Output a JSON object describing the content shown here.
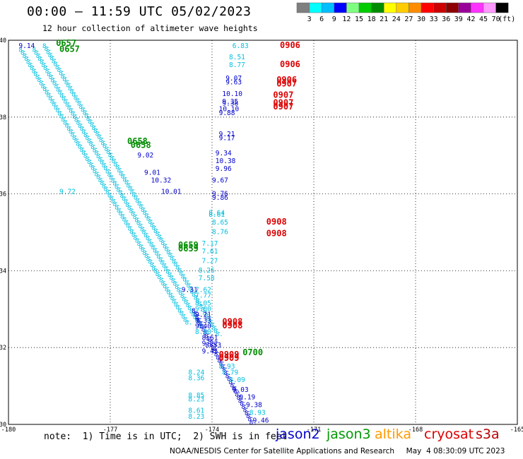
{
  "header": {
    "title": "00:00 – 11:59 UTC 05/02/2023",
    "subtitle": "12 hour collection of altimeter wave heights"
  },
  "colorbar": {
    "colors": [
      "#7f7f7f",
      "#00ffff",
      "#00bfff",
      "#0000ff",
      "#7fff7f",
      "#00cc00",
      "#008c00",
      "#ffff00",
      "#ffcc00",
      "#ff8c00",
      "#ff0000",
      "#cc0000",
      "#8c0000",
      "#990099",
      "#ff33ff",
      "#ff99ff",
      "#000000"
    ],
    "labels": [
      "3",
      "6",
      "9",
      "12",
      "15",
      "18",
      "21",
      "24",
      "27",
      "30",
      "33",
      "36",
      "39",
      "42",
      "45",
      "70"
    ],
    "unit": "(ft)"
  },
  "note": "note:  1) Time is in UTC;  2) SWH is in feet",
  "satellites": [
    {
      "name": "jason2",
      "color": "#0000cc"
    },
    {
      "name": "jason3",
      "color": "#009900"
    },
    {
      "name": "altika",
      "color": "#ff9900"
    },
    {
      "name": "cryosat",
      "color": "#dd0000"
    },
    {
      "name": "s3a",
      "color": "#bb0000"
    }
  ],
  "credit": "NOAA/NESDIS Center for Satellite Applications and Research     May  4 08:30:09 UTC 2023",
  "chart_data": {
    "type": "scatter",
    "xlim": [
      -180,
      -165
    ],
    "ylim": [
      30,
      40
    ],
    "x_ticks": [
      -180,
      -177,
      -174,
      -171,
      -168,
      -165
    ],
    "y_ticks": [
      30,
      32,
      34,
      36,
      38,
      40
    ],
    "grid": true,
    "colors": {
      "cyan": "#00bfe0",
      "blue": "#0000cc",
      "green": "#008c00",
      "red": "#dd0000"
    },
    "swh_labels": [
      {
        "x": -179.7,
        "y": 39.8,
        "v": "9.14",
        "c": "blue"
      },
      {
        "x": -178.5,
        "y": 36.0,
        "v": "9.72",
        "c": "cyan"
      },
      {
        "x": -176.2,
        "y": 36.95,
        "v": "9.02",
        "c": "blue"
      },
      {
        "x": -176.0,
        "y": 36.5,
        "v": "9.01",
        "c": "blue"
      },
      {
        "x": -175.8,
        "y": 36.3,
        "v": "10.32",
        "c": "blue"
      },
      {
        "x": -175.5,
        "y": 36.0,
        "v": "10.01",
        "c": "blue"
      },
      {
        "x": -174.9,
        "y": 33.45,
        "v": "9.31",
        "c": "blue"
      },
      {
        "x": -174.3,
        "y": 32.05,
        "v": "9.22",
        "c": "blue"
      },
      {
        "x": -174.3,
        "y": 31.85,
        "v": "9.45",
        "c": "blue"
      },
      {
        "x": -174.7,
        "y": 31.3,
        "v": "8.24",
        "c": "cyan"
      },
      {
        "x": -174.7,
        "y": 31.15,
        "v": "8.36",
        "c": "cyan"
      },
      {
        "x": -174.7,
        "y": 30.7,
        "v": "8.85",
        "c": "cyan"
      },
      {
        "x": -174.7,
        "y": 30.6,
        "v": "8.23",
        "c": "cyan"
      },
      {
        "x": -174.7,
        "y": 30.3,
        "v": "8.61",
        "c": "cyan"
      },
      {
        "x": -174.7,
        "y": 30.15,
        "v": "8.23",
        "c": "cyan"
      },
      {
        "x": -173.4,
        "y": 39.8,
        "v": "6.83",
        "c": "cyan"
      },
      {
        "x": -173.5,
        "y": 39.5,
        "v": "8.51",
        "c": "cyan"
      },
      {
        "x": -173.5,
        "y": 39.3,
        "v": "8.77",
        "c": "cyan"
      },
      {
        "x": -173.6,
        "y": 38.95,
        "v": "9.07",
        "c": "blue"
      },
      {
        "x": -173.6,
        "y": 38.85,
        "v": "9.63",
        "c": "blue"
      },
      {
        "x": -173.7,
        "y": 38.55,
        "v": "10.10",
        "c": "blue"
      },
      {
        "x": -173.7,
        "y": 38.35,
        "v": "9.35",
        "c": "blue"
      },
      {
        "x": -173.7,
        "y": 38.3,
        "v": "9.38",
        "c": "blue"
      },
      {
        "x": -173.8,
        "y": 38.15,
        "v": "10.10",
        "c": "blue"
      },
      {
        "x": -173.8,
        "y": 38.05,
        "v": "9.88",
        "c": "blue"
      },
      {
        "x": -173.8,
        "y": 37.5,
        "v": "9.21",
        "c": "blue"
      },
      {
        "x": -173.8,
        "y": 37.4,
        "v": "9.17",
        "c": "blue"
      },
      {
        "x": -173.9,
        "y": 37.0,
        "v": "9.34",
        "c": "blue"
      },
      {
        "x": -173.9,
        "y": 36.8,
        "v": "10.38",
        "c": "blue"
      },
      {
        "x": -173.9,
        "y": 36.6,
        "v": "9.96",
        "c": "blue"
      },
      {
        "x": -174.0,
        "y": 36.3,
        "v": "9.67",
        "c": "blue"
      },
      {
        "x": -174.0,
        "y": 35.95,
        "v": "9.76",
        "c": "blue"
      },
      {
        "x": -174.0,
        "y": 35.85,
        "v": "9.86",
        "c": "blue"
      },
      {
        "x": -174.1,
        "y": 35.45,
        "v": "8.64",
        "c": "cyan"
      },
      {
        "x": -174.1,
        "y": 35.4,
        "v": "8.61",
        "c": "cyan"
      },
      {
        "x": -174.0,
        "y": 35.2,
        "v": "8.65",
        "c": "cyan"
      },
      {
        "x": -174.0,
        "y": 34.95,
        "v": "8.76",
        "c": "cyan"
      },
      {
        "x": -174.3,
        "y": 34.65,
        "v": "7.17",
        "c": "cyan"
      },
      {
        "x": -174.3,
        "y": 34.45,
        "v": "7.61",
        "c": "cyan"
      },
      {
        "x": -174.3,
        "y": 34.2,
        "v": "7.27",
        "c": "cyan"
      },
      {
        "x": -174.4,
        "y": 33.95,
        "v": "8.26",
        "c": "cyan"
      },
      {
        "x": -174.4,
        "y": 33.75,
        "v": "7.58",
        "c": "cyan"
      },
      {
        "x": -174.5,
        "y": 33.45,
        "v": "7.62",
        "c": "cyan"
      },
      {
        "x": -174.5,
        "y": 33.3,
        "v": "7.77",
        "c": "cyan"
      },
      {
        "x": -174.5,
        "y": 33.1,
        "v": "8.05",
        "c": "cyan"
      },
      {
        "x": -174.5,
        "y": 32.95,
        "v": "9.00",
        "c": "cyan"
      },
      {
        "x": -174.5,
        "y": 32.8,
        "v": "9.21",
        "c": "blue"
      },
      {
        "x": -174.5,
        "y": 32.65,
        "v": "9.33",
        "c": "blue"
      },
      {
        "x": -174.5,
        "y": 32.5,
        "v": "9.40",
        "c": "blue"
      },
      {
        "x": -174.5,
        "y": 32.35,
        "v": "8.80",
        "c": "cyan"
      },
      {
        "x": -174.3,
        "y": 32.2,
        "v": "8.61",
        "c": "blue"
      },
      {
        "x": -174.2,
        "y": 32.0,
        "v": "8.53",
        "c": "blue"
      },
      {
        "x": -173.8,
        "y": 31.45,
        "v": "8.93",
        "c": "cyan"
      },
      {
        "x": -173.7,
        "y": 31.3,
        "v": "8.79",
        "c": "cyan"
      },
      {
        "x": -173.5,
        "y": 31.1,
        "v": "8.09",
        "c": "cyan"
      },
      {
        "x": -173.4,
        "y": 30.85,
        "v": "9.03",
        "c": "blue"
      },
      {
        "x": -173.2,
        "y": 30.65,
        "v": "9.19",
        "c": "blue"
      },
      {
        "x": -173.0,
        "y": 30.45,
        "v": "9.38",
        "c": "blue"
      },
      {
        "x": -172.9,
        "y": 30.25,
        "v": "8.93",
        "c": "cyan"
      },
      {
        "x": -172.8,
        "y": 30.05,
        "v": "9.46",
        "c": "blue"
      }
    ],
    "time_labels": [
      {
        "x": -178.6,
        "y": 39.85,
        "v": "0657",
        "c": "green"
      },
      {
        "x": -178.5,
        "y": 39.7,
        "v": "0657",
        "c": "green"
      },
      {
        "x": -176.5,
        "y": 37.3,
        "v": "0658",
        "c": "green"
      },
      {
        "x": -176.4,
        "y": 37.2,
        "v": "0658",
        "c": "green"
      },
      {
        "x": -175.0,
        "y": 34.6,
        "v": "0659",
        "c": "green"
      },
      {
        "x": -175.0,
        "y": 34.5,
        "v": "0659",
        "c": "green"
      },
      {
        "x": -173.1,
        "y": 31.8,
        "v": "0700",
        "c": "green"
      },
      {
        "x": -172.0,
        "y": 39.8,
        "v": "0906",
        "c": "red"
      },
      {
        "x": -172.0,
        "y": 39.3,
        "v": "0906",
        "c": "red"
      },
      {
        "x": -172.1,
        "y": 38.9,
        "v": "0906",
        "c": "red"
      },
      {
        "x": -172.1,
        "y": 38.8,
        "v": "0907",
        "c": "red"
      },
      {
        "x": -172.2,
        "y": 38.5,
        "v": "0907",
        "c": "red"
      },
      {
        "x": -172.2,
        "y": 38.3,
        "v": "0907",
        "c": "red"
      },
      {
        "x": -172.2,
        "y": 38.2,
        "v": "0907",
        "c": "red"
      },
      {
        "x": -172.4,
        "y": 35.2,
        "v": "0908",
        "c": "red"
      },
      {
        "x": -172.4,
        "y": 34.9,
        "v": "0908",
        "c": "red"
      },
      {
        "x": -173.7,
        "y": 32.6,
        "v": "0908",
        "c": "red"
      },
      {
        "x": -173.7,
        "y": 32.5,
        "v": "0908",
        "c": "red"
      },
      {
        "x": -173.8,
        "y": 31.75,
        "v": "0909",
        "c": "red"
      },
      {
        "x": -173.8,
        "y": 31.65,
        "v": "0909",
        "c": "red"
      }
    ],
    "tracks": [
      {
        "c": "cyan",
        "from": [
          -179.7,
          39.7
        ],
        "to": [
          -174.8,
          32.6
        ]
      },
      {
        "c": "cyan",
        "from": [
          -179.3,
          39.7
        ],
        "to": [
          -174.4,
          32.5
        ]
      },
      {
        "c": "cyan",
        "from": [
          -179.0,
          39.8
        ],
        "to": [
          -173.9,
          32.3
        ]
      },
      {
        "c": "blue",
        "from": [
          -174.6,
          32.9
        ],
        "to": [
          -172.9,
          30.0
        ]
      }
    ]
  }
}
